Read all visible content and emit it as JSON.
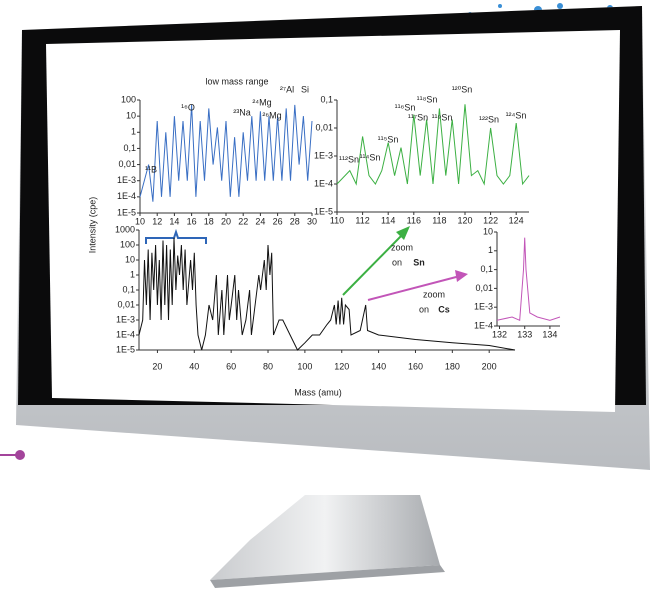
{
  "chart_data": [
    {
      "type": "line",
      "title": "low mass range",
      "log_y": true,
      "color": "#3a6fc4",
      "xlim": [
        10,
        30
      ],
      "xticks": [
        10,
        12,
        14,
        16,
        18,
        20,
        22,
        24,
        26,
        28,
        30
      ],
      "ylim": [
        1e-05,
        100
      ],
      "yticks": [
        100,
        10,
        1,
        {
          "value": 0.1,
          "label": "0,1"
        },
        {
          "value": 0.01,
          "label": "0,01"
        },
        {
          "value": 0.001,
          "label": "1E-3"
        },
        {
          "value": 0.0001,
          "label": "1E-4"
        },
        {
          "value": 1e-05,
          "label": "1E-5"
        }
      ],
      "annotations": [
        "¹¹B",
        "¹⁶O",
        "²³Na",
        "²⁴Mg",
        "²⁶Mg",
        "²⁷Al",
        "Si"
      ],
      "x": [
        10,
        11,
        11.5,
        12,
        12.5,
        13,
        13.5,
        14,
        14.5,
        15,
        15.5,
        16,
        16.5,
        17,
        17.5,
        18,
        18.5,
        19,
        19.5,
        20,
        20.5,
        21,
        21.5,
        22,
        22.5,
        23,
        23.5,
        24,
        24.5,
        25,
        25.5,
        26,
        26.5,
        27,
        27.5,
        28,
        28.5,
        29,
        29.5,
        30
      ],
      "values": [
        0.0001,
        0.01,
        5e-05,
        5,
        0.0001,
        1,
        0.0001,
        10,
        0.001,
        5,
        0.001,
        50,
        0.0001,
        5,
        0.001,
        30,
        0.01,
        2,
        0.001,
        5,
        0.0001,
        0.5,
        0.0001,
        1,
        0.001,
        10,
        0.001,
        20,
        0.001,
        10,
        0.001,
        10,
        0.001,
        30,
        0.001,
        50,
        0.01,
        10,
        0.001,
        5
      ]
    },
    {
      "type": "line",
      "log_y": true,
      "color": "#3cb043",
      "xlim": [
        110,
        125
      ],
      "xticks": [
        110,
        112,
        114,
        116,
        118,
        120,
        122,
        124
      ],
      "ylim": [
        1e-05,
        0.1
      ],
      "yticks": [
        {
          "value": 0.1,
          "label": "0,1"
        },
        {
          "value": 0.01,
          "label": "0,01"
        },
        {
          "value": 0.001,
          "label": "1E-3"
        },
        {
          "value": 0.0001,
          "label": "1E-4"
        },
        {
          "value": 1e-05,
          "label": "1E-5"
        }
      ],
      "annotations": [
        "¹¹²Sn",
        "¹¹⁴Sn",
        "¹¹⁵Sn",
        "¹¹⁶Sn",
        "¹¹⁷Sn",
        "¹¹⁸Sn",
        "¹¹⁹Sn",
        "¹²⁰Sn",
        "¹²²Sn",
        "¹²⁴Sn"
      ],
      "x": [
        110,
        111,
        111.5,
        112,
        112.5,
        113,
        113.5,
        114,
        114.5,
        115,
        115.5,
        116,
        116.5,
        117,
        117.5,
        118,
        118.5,
        119,
        119.5,
        120,
        120.5,
        121,
        121.5,
        122,
        122.5,
        123,
        123.5,
        124,
        124.5,
        125
      ],
      "values": [
        0.0001,
        0.0003,
        0.0001,
        0.005,
        0.0002,
        0.0001,
        0.0003,
        0.003,
        0.0002,
        0.002,
        0.0001,
        0.03,
        0.0002,
        0.02,
        0.0001,
        0.05,
        0.0002,
        0.02,
        0.0001,
        0.07,
        0.0002,
        0.0003,
        0.0001,
        0.01,
        0.0002,
        0.0001,
        0.0002,
        0.015,
        0.0001,
        0.0002
      ]
    },
    {
      "type": "line",
      "log_y": true,
      "color": "#111111",
      "y_label": "Intensity (cpe)",
      "x_label": "Mass (amu)",
      "xlim": [
        10,
        214
      ],
      "xticks": [
        20,
        40,
        60,
        80,
        100,
        120,
        140,
        160,
        180,
        200
      ],
      "ylim": [
        1e-05,
        1000
      ],
      "yticks": [
        1000,
        100,
        10,
        1,
        {
          "value": 0.1,
          "label": "0,1"
        },
        {
          "value": 0.01,
          "label": "0,01"
        },
        {
          "value": 0.001,
          "label": "1E-3"
        },
        {
          "value": 0.0001,
          "label": "1E-4"
        },
        {
          "value": 1e-05,
          "label": "1E-5"
        }
      ],
      "annotations": [
        "zoom",
        "on",
        "Sn",
        "zoom",
        "on",
        "Cs"
      ],
      "x": [
        10,
        12,
        13,
        14,
        15,
        16,
        17,
        18,
        19,
        20,
        21,
        22,
        23,
        24,
        25,
        26,
        27,
        28,
        29,
        30,
        31,
        32,
        33,
        34,
        35,
        36,
        38,
        39,
        40,
        41,
        42,
        44,
        46,
        48,
        50,
        52,
        53,
        55,
        56,
        58,
        59,
        60,
        62,
        63,
        64,
        66,
        68,
        70,
        71,
        73,
        75,
        76,
        78,
        79,
        80,
        81,
        82,
        83,
        86,
        88,
        92,
        96,
        100,
        104,
        108,
        112,
        114,
        116,
        117,
        118,
        119,
        120,
        121,
        122,
        124,
        125,
        130,
        133,
        134,
        140,
        160,
        180,
        200,
        214
      ],
      "values": [
        0.0001,
        0.001,
        10,
        0.01,
        50,
        0.001,
        30,
        0.1,
        100,
        0.01,
        10,
        0.001,
        200,
        0.01,
        100,
        0.001,
        50,
        0.01,
        300,
        0.1,
        20,
        1,
        100,
        0.1,
        50,
        0.01,
        10,
        0.1,
        30,
        0.01,
        0.0001,
        1e-05,
        0.0001,
        0.01,
        0.001,
        1,
        0.0001,
        0.1,
        0.0001,
        1,
        0.001,
        0.01,
        1,
        0.001,
        0.1,
        0.0001,
        0.001,
        0.1,
        0.0001,
        0.01,
        1,
        0.1,
        10,
        0.1,
        100,
        1,
        30,
        0.0001,
        0.001,
        0.001,
        0.0001,
        1e-05,
        3e-05,
        0.0001,
        0.0001,
        0.0005,
        0.001,
        0.01,
        0.0005,
        0.02,
        0.0005,
        0.03,
        0.0005,
        0.01,
        0.005,
        0.0001,
        0.0002,
        0.01,
        0.0002,
        0.0001,
        5e-05,
        3e-05,
        2e-05,
        1e-05
      ]
    },
    {
      "type": "line",
      "log_y": true,
      "color": "#c255b8",
      "xlim": [
        131.9,
        134.4
      ],
      "xticks": [
        132,
        133,
        134
      ],
      "ylim": [
        0.0001,
        10
      ],
      "yticks": [
        10,
        1,
        {
          "value": 0.1,
          "label": "0,1"
        },
        {
          "value": 0.01,
          "label": "0,01"
        },
        {
          "value": 0.001,
          "label": "1E-3"
        },
        {
          "value": 0.0001,
          "label": "1E-4"
        }
      ],
      "x": [
        131.9,
        132.5,
        132.8,
        132.95,
        133,
        133.05,
        133.2,
        133.5,
        134,
        134.4
      ],
      "values": [
        0.0002,
        0.0003,
        0.0002,
        0.1,
        5,
        0.1,
        0.0005,
        0.0003,
        0.0002,
        0.0003
      ]
    }
  ]
}
